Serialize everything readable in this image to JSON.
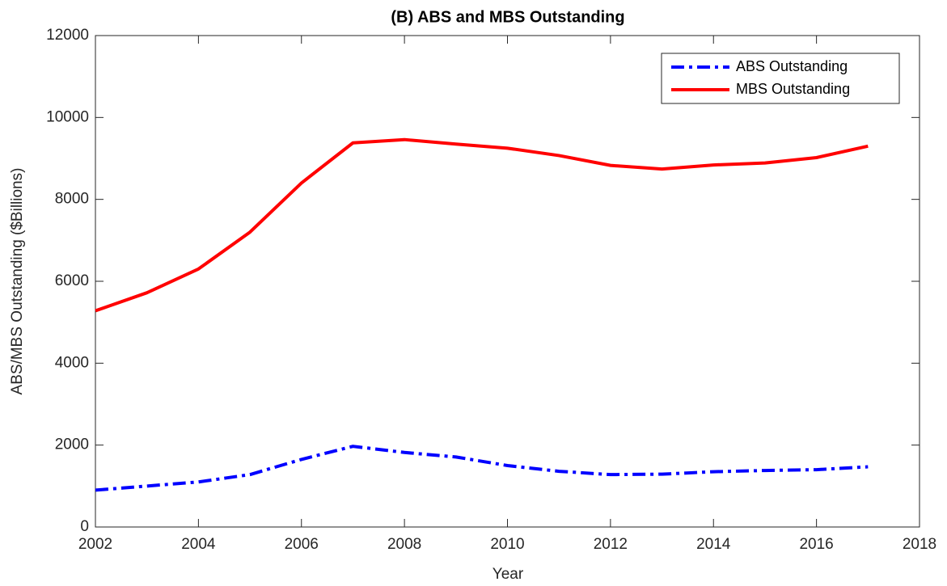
{
  "chart_data": {
    "type": "line",
    "title": "(B) ABS and MBS Outstanding",
    "x_label": "Year",
    "y_label": "ABS/MBS Outstanding ($Billions)",
    "x": [
      2002,
      2003,
      2004,
      2005,
      2006,
      2007,
      2008,
      2009,
      2010,
      2011,
      2012,
      2013,
      2014,
      2015,
      2016,
      2017
    ],
    "series": [
      {
        "name": "ABS Outstanding",
        "color": "#0000ff",
        "line_style": "dashdot",
        "values": [
          900,
          1000,
          1100,
          1280,
          1650,
          1970,
          1820,
          1710,
          1500,
          1360,
          1280,
          1290,
          1350,
          1380,
          1400,
          1470
        ]
      },
      {
        "name": "MBS Outstanding",
        "color": "#ff0000",
        "line_style": "solid",
        "values": [
          5280,
          5720,
          6300,
          7200,
          8400,
          9380,
          9460,
          9350,
          9250,
          9070,
          8830,
          8740,
          8840,
          8890,
          9020,
          9300
        ]
      }
    ],
    "xlim": [
      2002,
      2018
    ],
    "xticks": [
      2002,
      2004,
      2006,
      2008,
      2010,
      2012,
      2014,
      2016,
      2018
    ],
    "ylim": [
      0,
      12000
    ],
    "yticks": [
      0,
      2000,
      4000,
      6000,
      8000,
      10000,
      12000
    ],
    "grid": false,
    "legend_position": "upper right"
  }
}
